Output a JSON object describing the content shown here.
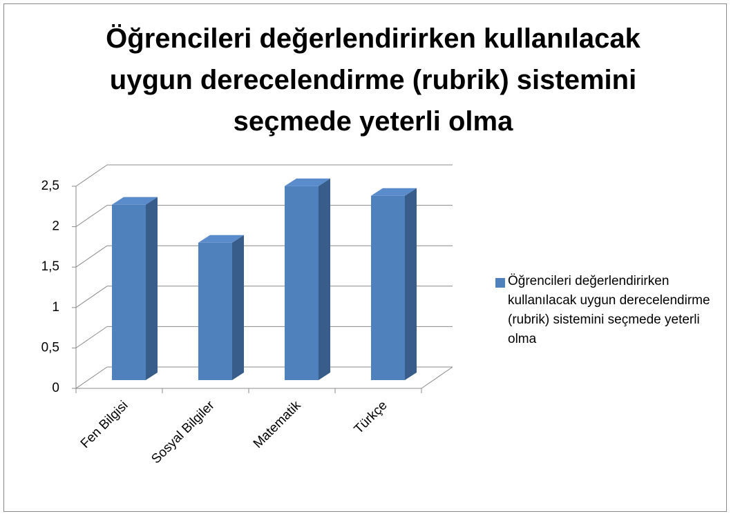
{
  "chart_data": {
    "type": "bar3d",
    "title": "Öğrencileri değerlendirirken kullanılacak uygun derecelendirme (rubrik) sistemini seçmede yeterli olma",
    "categories": [
      "Fen Bilgisi",
      "Sosyal Bilgiler",
      "Matematik",
      "Türkçe"
    ],
    "series": [
      {
        "name": "Öğrencileri değerlendirirken kullanılacak uygun derecelendirme (rubrik) sistemini seçmede yeterli olma",
        "color": "#4f81bd",
        "values": [
          2.17,
          1.7,
          2.4,
          2.28
        ]
      }
    ],
    "ylim": [
      0,
      2.5
    ],
    "yticks": [
      0,
      {
        "value": 0.5,
        "label": "0,5"
      },
      1,
      {
        "value": 1.5,
        "label": "1,5"
      },
      2,
      {
        "value": 2.5,
        "label": "2,5"
      }
    ],
    "grid": true,
    "legend": "right"
  }
}
